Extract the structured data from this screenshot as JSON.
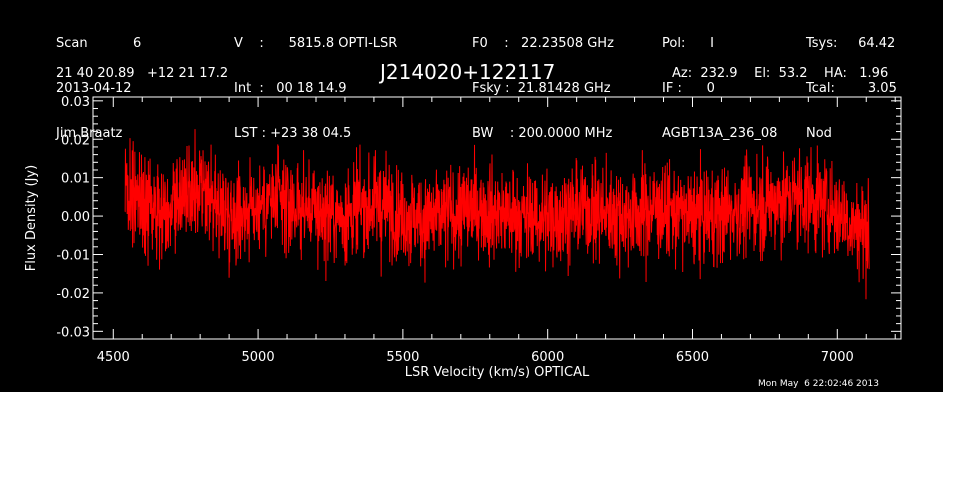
{
  "header": {
    "col1": [
      "Scan           6",
      "2013-04-12",
      "Jim Braatz"
    ],
    "col2": [
      "V    :      5815.8 OPTI-LSR",
      "Int  :   00 18 14.9",
      "LST : +23 38 04.5"
    ],
    "col3": [
      "F0    :   22.23508 GHz",
      "Fsky :  21.81428 GHz",
      "BW    : 200.0000 MHz"
    ],
    "col4": [
      "Pol:      I",
      "IF :      0",
      "AGBT13A_236_08"
    ],
    "col5": [
      "Tsys:     64.42",
      "Tcal:        3.05",
      "Nod"
    ],
    "coords": "21 40 20.89   +12 21 17.2",
    "source": "J214020+122117",
    "azelha": "Az:  232.9    El:  53.2    HA:   1.96",
    "timestamp": "Mon May  6 22:02:46 2013"
  },
  "colors": {
    "background": "#000000",
    "trace": "#ff0000",
    "axes": "#ffffff"
  },
  "chart_data": {
    "type": "line",
    "title": "J214020+122117",
    "xlabel": "LSR Velocity (km/s) OPTICAL",
    "ylabel": "Flux Density (Jy)",
    "xlim": [
      4430,
      7220
    ],
    "ylim": [
      -0.032,
      0.031
    ],
    "xticks": [
      4500,
      5000,
      5500,
      6000,
      6500,
      7000
    ],
    "yticks": [
      -0.03,
      -0.02,
      -0.01,
      0.0,
      0.01,
      0.02,
      0.03
    ],
    "ytick_labels": [
      "-0.03",
      "-0.02",
      "-0.01",
      "0.00",
      "0.01",
      "0.02",
      "0.03"
    ],
    "grid": false,
    "series": [
      {
        "x_start": 4540,
        "x_end": 7110,
        "noise_rms": 0.0062,
        "y": [
          0.006,
          0.003,
          0.002,
          0.004,
          0.005,
          0.003,
          0.001,
          0.002,
          0.004,
          0.003,
          0.002,
          0.001,
          0.0,
          0.001,
          0.003,
          0.002,
          0.0,
          -0.001,
          0.0,
          0.001,
          0.002,
          0.001,
          0.0,
          -0.001,
          0.0,
          0.001,
          0.002,
          0.001,
          0.0,
          0.001,
          0.002,
          0.001,
          0.0,
          0.0,
          0.001,
          0.002,
          0.003,
          0.004,
          0.005,
          0.004,
          0.002,
          -0.002,
          -0.004
        ]
      }
    ]
  }
}
